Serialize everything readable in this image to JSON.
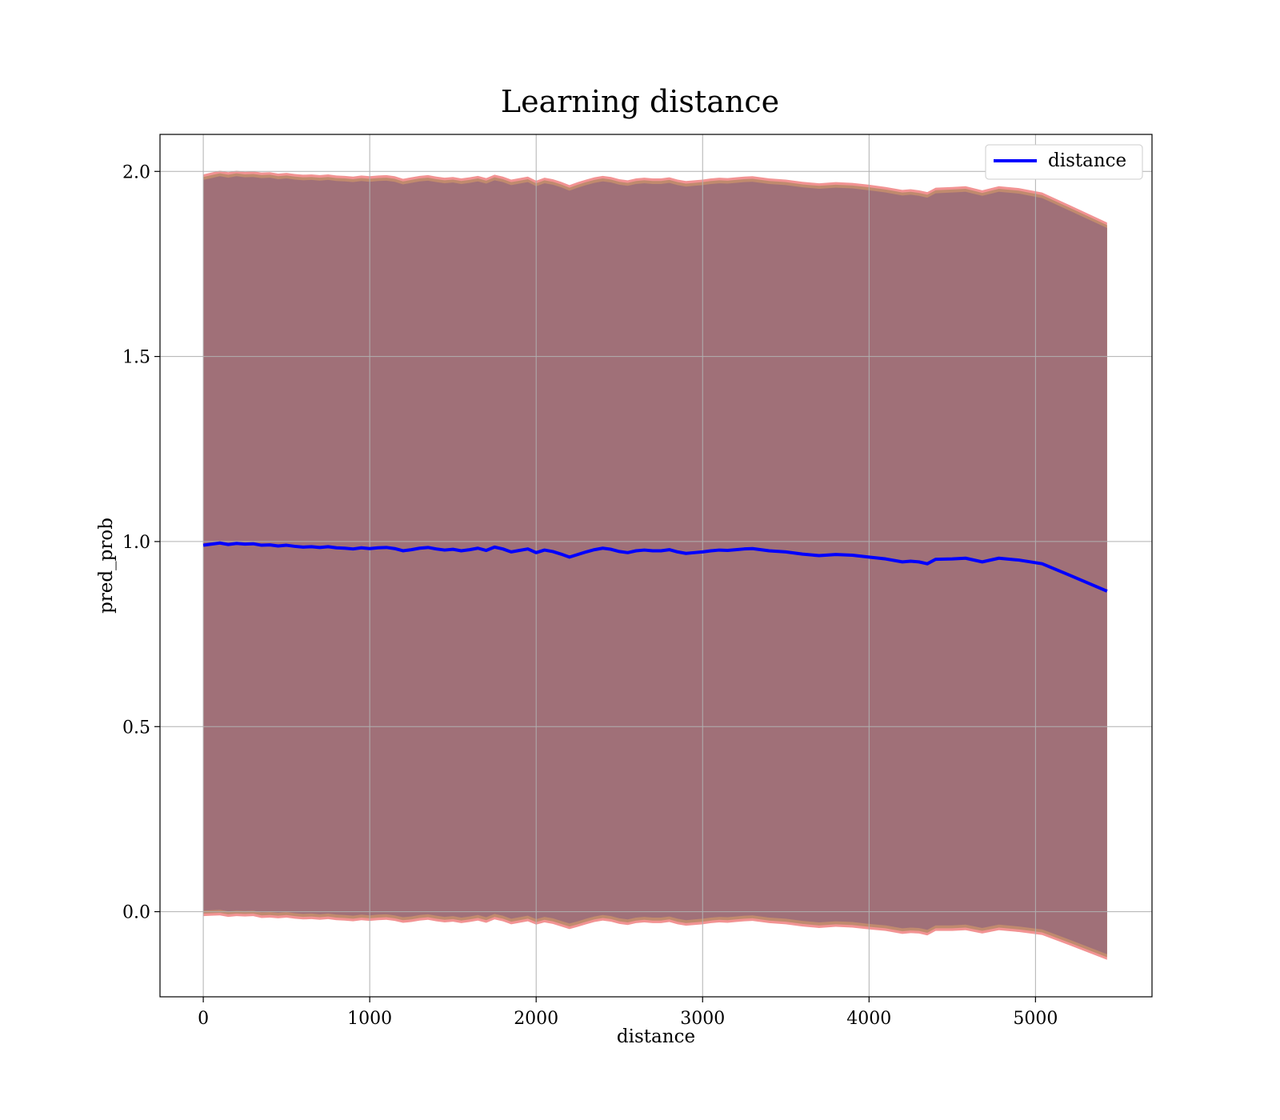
{
  "chart_data": {
    "type": "line",
    "title": "Learning distance",
    "xlabel": "distance",
    "ylabel": "pred_prob",
    "xlim": [
      -260,
      5700
    ],
    "ylim": [
      -0.23,
      2.1
    ],
    "xticks": [
      0,
      1000,
      2000,
      3000,
      4000,
      5000
    ],
    "yticks": [
      0.0,
      0.5,
      1.0,
      1.5,
      2.0
    ],
    "ytick_labels": [
      "0.0",
      "0.5",
      "1.0",
      "1.5",
      "2.0"
    ],
    "grid": true,
    "legend": {
      "position": "top-right",
      "entries": [
        "distance"
      ]
    },
    "colors": {
      "line": "#0000ff",
      "band_outer": "#f08080",
      "band_mid": "#c08a6e",
      "band_inner": "#a07078"
    },
    "series": [
      {
        "name": "distance",
        "x": [
          0,
          50,
          100,
          150,
          200,
          250,
          300,
          350,
          400,
          450,
          500,
          550,
          600,
          650,
          700,
          750,
          800,
          850,
          900,
          950,
          1000,
          1050,
          1100,
          1150,
          1200,
          1250,
          1300,
          1350,
          1400,
          1450,
          1500,
          1550,
          1600,
          1650,
          1700,
          1750,
          1800,
          1850,
          1900,
          1950,
          2000,
          2050,
          2100,
          2150,
          2200,
          2250,
          2300,
          2350,
          2400,
          2450,
          2500,
          2550,
          2600,
          2650,
          2700,
          2750,
          2800,
          2850,
          2900,
          2950,
          3000,
          3050,
          3100,
          3150,
          3200,
          3250,
          3300,
          3400,
          3500,
          3600,
          3700,
          3800,
          3900,
          4000,
          4100,
          4200,
          4250,
          4300,
          4350,
          4400,
          4500,
          4580,
          4680,
          4780,
          4900,
          5040,
          5200,
          5430
        ],
        "y": [
          0.99,
          0.993,
          0.996,
          0.992,
          0.995,
          0.993,
          0.994,
          0.99,
          0.991,
          0.988,
          0.99,
          0.987,
          0.985,
          0.986,
          0.984,
          0.986,
          0.983,
          0.982,
          0.98,
          0.983,
          0.981,
          0.983,
          0.984,
          0.981,
          0.975,
          0.978,
          0.982,
          0.984,
          0.98,
          0.977,
          0.979,
          0.975,
          0.978,
          0.982,
          0.976,
          0.985,
          0.98,
          0.972,
          0.976,
          0.98,
          0.97,
          0.977,
          0.973,
          0.966,
          0.958,
          0.965,
          0.972,
          0.978,
          0.982,
          0.979,
          0.973,
          0.97,
          0.975,
          0.977,
          0.975,
          0.975,
          0.978,
          0.972,
          0.968,
          0.97,
          0.972,
          0.975,
          0.977,
          0.976,
          0.978,
          0.98,
          0.981,
          0.975,
          0.972,
          0.966,
          0.962,
          0.965,
          0.963,
          0.958,
          0.953,
          0.945,
          0.947,
          0.945,
          0.94,
          0.952,
          0.953,
          0.955,
          0.945,
          0.955,
          0.95,
          0.94,
          0.91,
          0.866
        ],
        "upper": [
          1.98,
          1.985,
          1.99,
          1.986,
          1.99,
          1.987,
          1.988,
          1.985,
          1.986,
          1.982,
          1.984,
          1.981,
          1.979,
          1.98,
          1.978,
          1.98,
          1.977,
          1.976,
          1.974,
          1.977,
          1.975,
          1.977,
          1.978,
          1.975,
          1.968,
          1.972,
          1.976,
          1.978,
          1.974,
          1.971,
          1.973,
          1.969,
          1.972,
          1.976,
          1.97,
          1.979,
          1.974,
          1.966,
          1.97,
          1.974,
          1.963,
          1.971,
          1.967,
          1.96,
          1.951,
          1.959,
          1.966,
          1.972,
          1.976,
          1.973,
          1.967,
          1.964,
          1.969,
          1.971,
          1.969,
          1.969,
          1.972,
          1.966,
          1.962,
          1.964,
          1.966,
          1.969,
          1.971,
          1.97,
          1.972,
          1.974,
          1.975,
          1.969,
          1.966,
          1.96,
          1.956,
          1.959,
          1.957,
          1.952,
          1.946,
          1.938,
          1.94,
          1.937,
          1.932,
          1.944,
          1.946,
          1.948,
          1.937,
          1.948,
          1.943,
          1.931,
          1.898,
          1.85
        ],
        "lower": [
          0.0,
          0.001,
          0.002,
          -0.002,
          0.0,
          -0.001,
          0.0,
          -0.005,
          -0.004,
          -0.006,
          -0.004,
          -0.007,
          -0.009,
          -0.008,
          -0.01,
          -0.008,
          -0.011,
          -0.012,
          -0.014,
          -0.011,
          -0.013,
          -0.011,
          -0.01,
          -0.013,
          -0.018,
          -0.016,
          -0.012,
          -0.01,
          -0.014,
          -0.017,
          -0.015,
          -0.019,
          -0.016,
          -0.012,
          -0.018,
          -0.009,
          -0.014,
          -0.022,
          -0.018,
          -0.014,
          -0.023,
          -0.017,
          -0.021,
          -0.028,
          -0.035,
          -0.029,
          -0.022,
          -0.016,
          -0.012,
          -0.015,
          -0.021,
          -0.024,
          -0.019,
          -0.017,
          -0.019,
          -0.019,
          -0.016,
          -0.022,
          -0.026,
          -0.024,
          -0.022,
          -0.019,
          -0.017,
          -0.018,
          -0.016,
          -0.014,
          -0.013,
          -0.019,
          -0.022,
          -0.028,
          -0.032,
          -0.029,
          -0.031,
          -0.036,
          -0.04,
          -0.048,
          -0.046,
          -0.047,
          -0.052,
          -0.04,
          -0.04,
          -0.038,
          -0.047,
          -0.038,
          -0.043,
          -0.051,
          -0.078,
          -0.118
        ]
      }
    ]
  }
}
